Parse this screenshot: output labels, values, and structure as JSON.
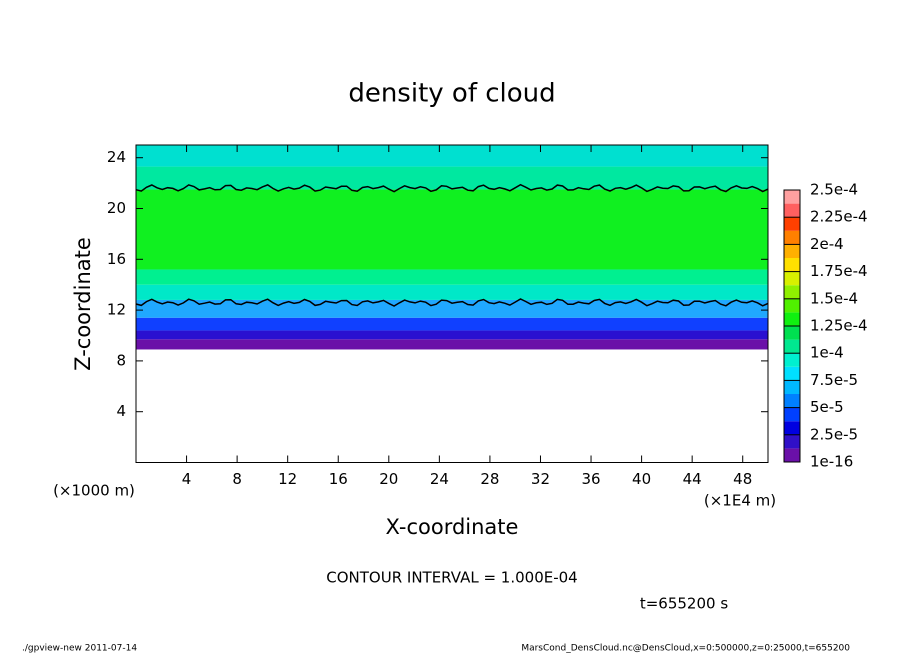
{
  "chart_data": {
    "type": "contour",
    "title": "density of cloud",
    "x_label": "X-coordinate",
    "y_label": "Z-coordinate",
    "x_unit": "(×1E4 m)",
    "y_unit": "(×1000 m)",
    "xlim": [
      0,
      50
    ],
    "xticks": [
      4,
      8,
      12,
      16,
      20,
      24,
      28,
      32,
      36,
      40,
      44,
      48
    ],
    "ylim": [
      0,
      25
    ],
    "yticks": [
      4,
      8,
      12,
      16,
      20,
      24
    ],
    "bands": [
      {
        "z": [
          8.9,
          9.7
        ],
        "color": "#6a10a8"
      },
      {
        "z": [
          9.7,
          10.4
        ],
        "color": "#2a10d0"
      },
      {
        "z": [
          10.4,
          11.4
        ],
        "color": "#1040ff"
      },
      {
        "z": [
          11.4,
          12.8
        ],
        "color": "#20a8ff"
      },
      {
        "z": [
          12.8,
          14
        ],
        "color": "#00e8c8"
      },
      {
        "z": [
          14,
          15.2
        ],
        "color": "#00f090"
      },
      {
        "z": [
          15.2,
          21.5
        ],
        "color": "#10f020"
      },
      {
        "z": [
          21.5,
          23.3
        ],
        "color": "#00e8a0"
      },
      {
        "z": [
          23.3,
          25
        ],
        "color": "#00e0d0"
      }
    ],
    "contours": [
      12.6,
      21.6
    ],
    "colorbar": {
      "levels": [
        {
          "value": 1e-16,
          "label": "1e-16"
        },
        {
          "value": 2.5e-05,
          "label": "2.5e-5"
        },
        {
          "value": 5e-05,
          "label": "5e-5"
        },
        {
          "value": 7.5e-05,
          "label": "7.5e-5"
        },
        {
          "value": 0.0001,
          "label": "1e-4"
        },
        {
          "value": 0.000125,
          "label": "1.25e-4"
        },
        {
          "value": 0.00015,
          "label": "1.5e-4"
        },
        {
          "value": 0.000175,
          "label": "1.75e-4"
        },
        {
          "value": 0.0002,
          "label": "2e-4"
        },
        {
          "value": 0.000225,
          "label": "2.25e-4"
        },
        {
          "value": 0.00025,
          "label": "2.5e-4"
        }
      ],
      "colors": [
        "#6a10a8",
        "#3010c8",
        "#0000e0",
        "#0040ff",
        "#0080ff",
        "#00b8ff",
        "#00e0ff",
        "#00f0d0",
        "#00e890",
        "#00e050",
        "#10f010",
        "#50f000",
        "#90f000",
        "#d8f000",
        "#ffe000",
        "#ffb000",
        "#ff8000",
        "#ff4000",
        "#ff6060",
        "#ffa0a0"
      ]
    },
    "contour_interval": "CONTOUR INTERVAL = 1.000E-04",
    "time_label": "t=655200 s",
    "footer_left": "./gpview-new  2011-07-14",
    "footer_right": "MarsCond_DensCloud.nc@DensCloud,x=0:500000,z=0:25000,t=655200"
  }
}
